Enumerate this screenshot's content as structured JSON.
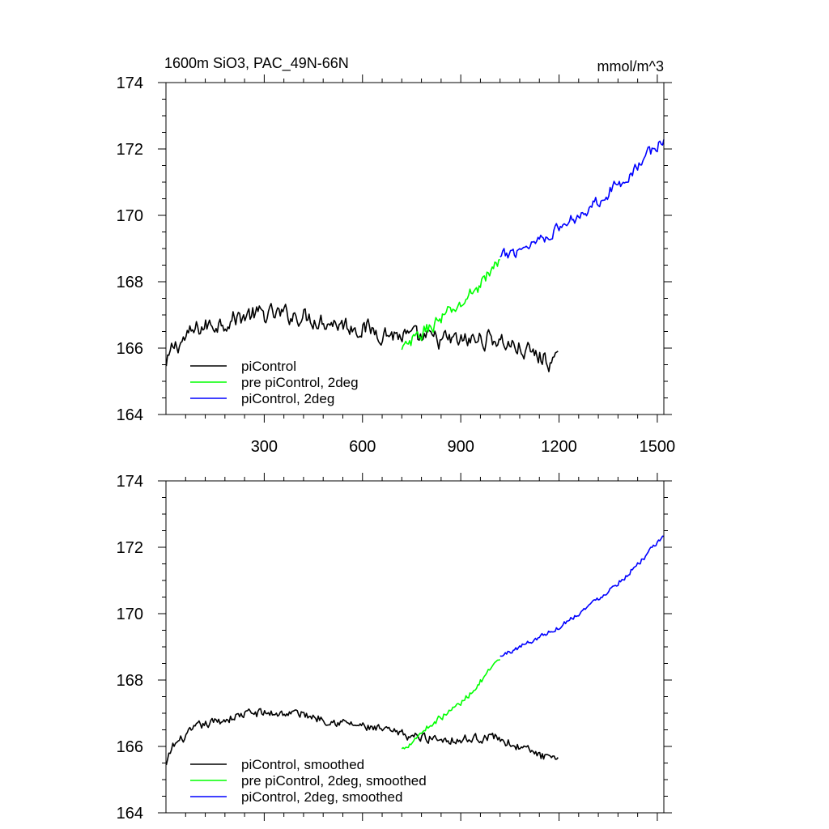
{
  "chart_data": [
    {
      "type": "line",
      "title": "1600m SiO3, PAC_49N-66N",
      "units": "mmol/m^3",
      "xlim": [
        0,
        1520
      ],
      "ylim": [
        164,
        174
      ],
      "x_ticks": [
        300,
        600,
        900,
        1200,
        1500
      ],
      "y_ticks": [
        164,
        166,
        168,
        170,
        172,
        174
      ],
      "x_tick_labels": [
        "300",
        "600",
        "900",
        "1200",
        "1500"
      ],
      "y_tick_labels": [
        "164",
        "166",
        "168",
        "170",
        "172",
        "174"
      ],
      "legend_position": "bottom-left",
      "series": [
        {
          "name": "piControl",
          "color": "#000000",
          "x_range": [
            1,
            1200
          ],
          "noise": 0.45,
          "trend": [
            [
              1,
              165.4
            ],
            [
              20,
              166.0
            ],
            [
              100,
              166.6
            ],
            [
              250,
              167.0
            ],
            [
              400,
              167.0
            ],
            [
              600,
              166.6
            ],
            [
              750,
              166.3
            ],
            [
              900,
              166.2
            ],
            [
              1000,
              166.3
            ],
            [
              1100,
              165.9
            ],
            [
              1200,
              165.5
            ]
          ]
        },
        {
          "name": "pre piControl, 2deg",
          "color": "#00ff00",
          "x_range": [
            720,
            1020
          ],
          "noise": 0.35,
          "trend": [
            [
              720,
              165.9
            ],
            [
              800,
              166.6
            ],
            [
              900,
              167.3
            ],
            [
              1020,
              168.6
            ]
          ]
        },
        {
          "name": "piControl, 2deg",
          "color": "#0000ff",
          "x_range": [
            1020,
            1520
          ],
          "noise": 0.3,
          "trend": [
            [
              1020,
              168.7
            ],
            [
              1200,
              169.6
            ],
            [
              1300,
              170.3
            ],
            [
              1400,
              171.1
            ],
            [
              1520,
              172.3
            ]
          ]
        }
      ]
    },
    {
      "type": "line",
      "xlim": [
        0,
        1520
      ],
      "ylim": [
        164,
        174
      ],
      "x_ticks": [
        300,
        600,
        900,
        1200,
        1500
      ],
      "y_ticks": [
        164,
        166,
        168,
        170,
        172,
        174
      ],
      "y_tick_labels": [
        "164",
        "166",
        "168",
        "170",
        "172",
        "174"
      ],
      "legend_position": "bottom-left",
      "series": [
        {
          "name": "piControl, smoothed",
          "color": "#000000",
          "x_range": [
            1,
            1200
          ],
          "noise": 0.22,
          "trend": [
            [
              1,
              165.4
            ],
            [
              20,
              166.0
            ],
            [
              100,
              166.6
            ],
            [
              250,
              167.0
            ],
            [
              400,
              167.0
            ],
            [
              600,
              166.6
            ],
            [
              750,
              166.3
            ],
            [
              900,
              166.2
            ],
            [
              1000,
              166.3
            ],
            [
              1100,
              165.9
            ],
            [
              1200,
              165.5
            ]
          ]
        },
        {
          "name": "pre piControl, 2deg, smoothed",
          "color": "#00ff00",
          "x_range": [
            720,
            1020
          ],
          "noise": 0.15,
          "trend": [
            [
              720,
              165.9
            ],
            [
              800,
              166.6
            ],
            [
              900,
              167.3
            ],
            [
              1020,
              168.6
            ]
          ]
        },
        {
          "name": "piControl, 2deg, smoothed",
          "color": "#0000ff",
          "x_range": [
            1020,
            1520
          ],
          "noise": 0.12,
          "trend": [
            [
              1020,
              168.7
            ],
            [
              1200,
              169.6
            ],
            [
              1300,
              170.3
            ],
            [
              1400,
              171.1
            ],
            [
              1520,
              172.3
            ]
          ]
        }
      ]
    }
  ]
}
